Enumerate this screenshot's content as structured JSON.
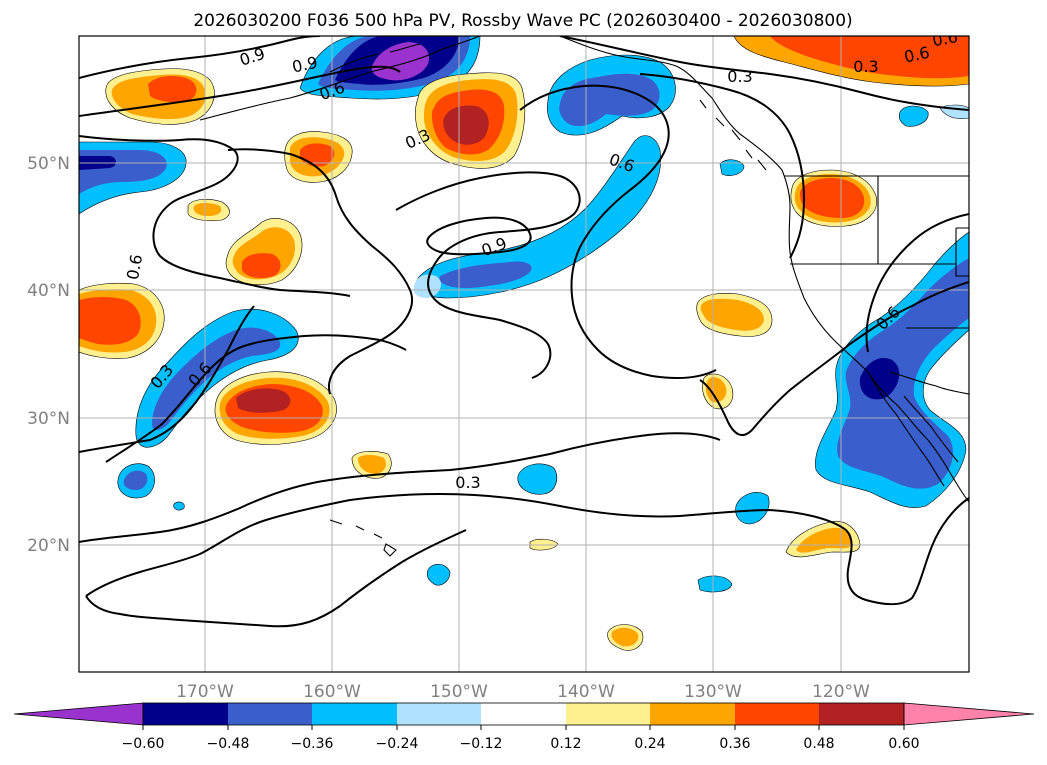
{
  "title": "2026030200 F036 500 hPa PV, Rossby Wave PC (2026030400 - 2026030800)",
  "map": {
    "lat_labels": [
      "50°N",
      "40°N",
      "30°N",
      "20°N"
    ],
    "lon_labels": [
      "170°W",
      "160°W",
      "150°W",
      "140°W",
      "130°W",
      "120°W"
    ],
    "contour_labels": [
      "0.9",
      "0.9",
      "0.6",
      "0.3",
      "0.3",
      "0.6",
      "0.3",
      "0.6",
      "0.6",
      "0.9",
      "0.6",
      "0.3",
      "0.6",
      "0.3",
      "0.6"
    ]
  },
  "colorbar": {
    "tick_labels": [
      "−0.60",
      "−0.48",
      "−0.36",
      "−0.24",
      "−0.12",
      "0.12",
      "0.24",
      "0.36",
      "0.48",
      "0.60"
    ],
    "colors": [
      "#9a32cd",
      "#00008b",
      "#3a5fcd",
      "#00bfff",
      "#b0e2ff",
      "#ffffff",
      "#fff08f",
      "#ffa500",
      "#ff4500",
      "#b22222",
      "#ff82ab"
    ]
  }
}
